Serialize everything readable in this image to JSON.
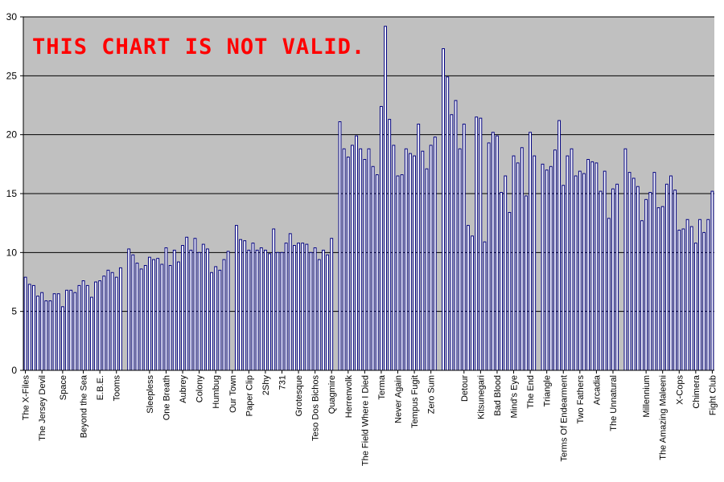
{
  "chart_data": {
    "type": "bar",
    "annotation": "THIS CHART IS NOT VALID.",
    "ylim": [
      0,
      30
    ],
    "yticks": [
      0,
      5,
      10,
      15,
      20,
      25,
      30
    ],
    "grid": true,
    "colors": {
      "plot_bg": "#c0c0c0",
      "bar_fill": "#ffffff",
      "bar_stroke": "#000080",
      "grid": "#000000",
      "annotation": "#ff0000"
    },
    "values": [
      7.9,
      7.3,
      7.2,
      6.3,
      6.6,
      5.9,
      5.9,
      6.5,
      6.5,
      5.4,
      6.8,
      6.8,
      6.6,
      7.2,
      7.6,
      7.2,
      6.2,
      7.5,
      7.6,
      8.0,
      8.5,
      8.3,
      7.9,
      8.7,
      null,
      10.3,
      9.8,
      9.1,
      8.6,
      8.9,
      9.6,
      9.4,
      9.5,
      9.0,
      10.4,
      8.9,
      10.2,
      9.2,
      10.6,
      11.3,
      10.2,
      11.2,
      10.0,
      10.7,
      10.3,
      8.3,
      8.8,
      8.5,
      9.4,
      10.1,
      null,
      12.3,
      11.1,
      11.0,
      10.2,
      10.8,
      10.2,
      10.4,
      10.2,
      9.9,
      12.0,
      10.0,
      10.0,
      10.8,
      11.6,
      10.6,
      10.8,
      10.8,
      10.7,
      10.0,
      10.4,
      9.4,
      10.2,
      9.8,
      11.2,
      null,
      21.1,
      18.8,
      18.1,
      19.1,
      19.9,
      18.8,
      17.9,
      18.8,
      17.3,
      16.6,
      22.4,
      29.2,
      21.3,
      19.1,
      16.5,
      16.6,
      18.8,
      18.4,
      18.2,
      20.9,
      18.6,
      17.1,
      19.1,
      19.8,
      null,
      27.3,
      24.9,
      21.7,
      22.9,
      18.8,
      20.9,
      12.3,
      11.4,
      21.5,
      21.4,
      10.9,
      19.3,
      20.2,
      19.9,
      15.1,
      16.5,
      13.4,
      18.2,
      17.6,
      18.9,
      14.8,
      20.2,
      18.2,
      null,
      17.5,
      17.0,
      17.3,
      18.7,
      21.2,
      15.7,
      18.2,
      18.8,
      16.5,
      16.9,
      16.7,
      17.9,
      17.7,
      17.6,
      15.2,
      16.9,
      12.9,
      15.4,
      15.8,
      null,
      18.8,
      16.8,
      16.3,
      15.6,
      12.7,
      14.5,
      15.1,
      16.8,
      13.8,
      13.9,
      15.8,
      16.5,
      15.3,
      11.9,
      12.0,
      12.8,
      12.2,
      10.8,
      12.8,
      11.7,
      12.8,
      15.2
    ],
    "category_labels": [
      {
        "label": "The X-Files",
        "index": 0
      },
      {
        "label": "The Jersey Devil",
        "index": 4
      },
      {
        "label": "Space",
        "index": 9
      },
      {
        "label": "Beyond the Sea",
        "index": 14
      },
      {
        "label": "E.B.E.",
        "index": 18
      },
      {
        "label": "Tooms",
        "index": 22
      },
      {
        "label": "Sleepless",
        "index": 30
      },
      {
        "label": "One Breath",
        "index": 34
      },
      {
        "label": "Aubrey",
        "index": 38
      },
      {
        "label": "Colony",
        "index": 42
      },
      {
        "label": "Humbug",
        "index": 46
      },
      {
        "label": "Our Town",
        "index": 50
      },
      {
        "label": "Paper Clip",
        "index": 54
      },
      {
        "label": "2Shy",
        "index": 58
      },
      {
        "label": "731",
        "index": 62
      },
      {
        "label": "Grotesque",
        "index": 66
      },
      {
        "label": "Teso Dos Bichos",
        "index": 70
      },
      {
        "label": "Quagmire",
        "index": 74
      },
      {
        "label": "Herrenvolk",
        "index": 78
      },
      {
        "label": "The Field Where I Died",
        "index": 82
      },
      {
        "label": "Terma",
        "index": 86
      },
      {
        "label": "Never Again",
        "index": 90
      },
      {
        "label": "Tempus Fugit",
        "index": 94
      },
      {
        "label": "Zero Sum",
        "index": 98
      },
      {
        "label": "Detour",
        "index": 106
      },
      {
        "label": "Kitsunegari",
        "index": 110
      },
      {
        "label": "Bad Blood",
        "index": 114
      },
      {
        "label": "Mind's Eye",
        "index": 118
      },
      {
        "label": "The End",
        "index": 122
      },
      {
        "label": "Triangle",
        "index": 126
      },
      {
        "label": "Terms Of Endearment",
        "index": 130
      },
      {
        "label": "Two Fathers",
        "index": 134
      },
      {
        "label": "Arcadia",
        "index": 138
      },
      {
        "label": "The Unnatural",
        "index": 142
      },
      {
        "label": "Millennium",
        "index": 150
      },
      {
        "label": "The Amazing Maleeni",
        "index": 154
      },
      {
        "label": "X-Cops",
        "index": 158
      },
      {
        "label": "Chimera",
        "index": 162
      },
      {
        "label": "Fight Club",
        "index": 166
      }
    ]
  }
}
